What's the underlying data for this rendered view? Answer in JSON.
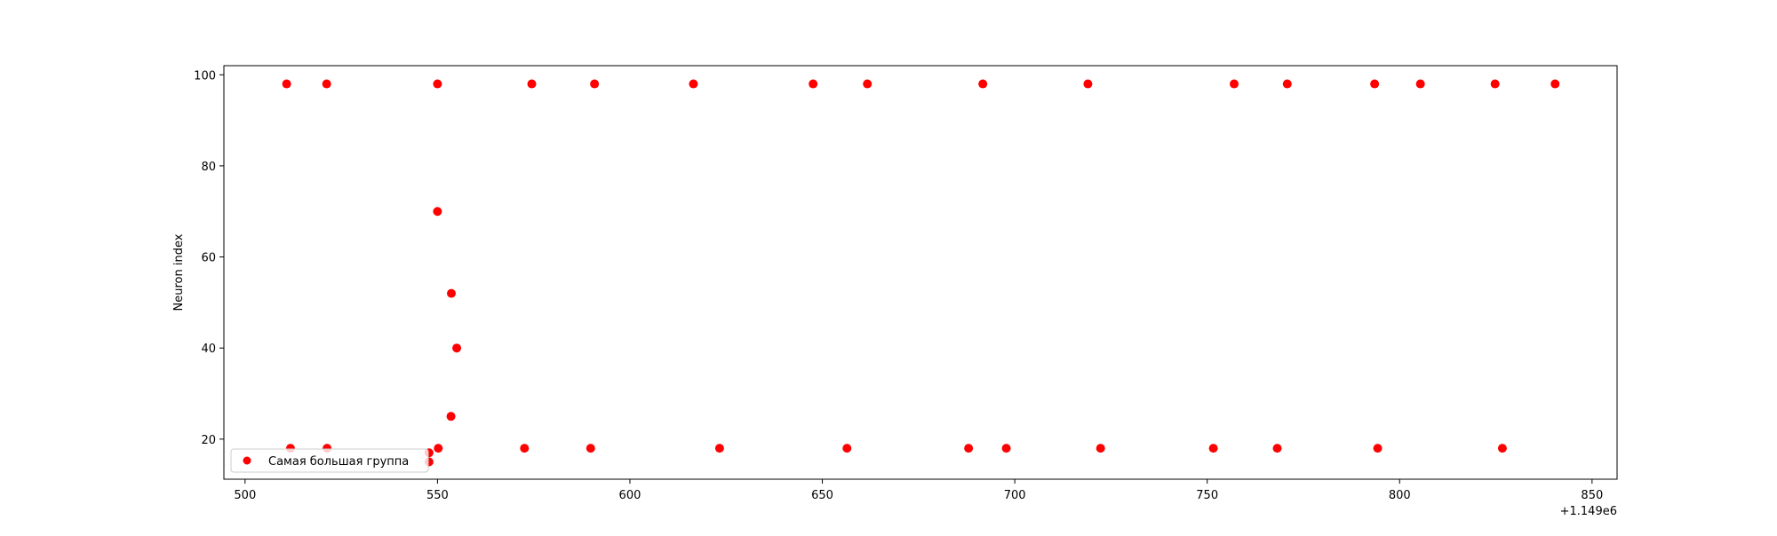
{
  "chart_data": {
    "type": "scatter",
    "title": "",
    "xlabel": "",
    "ylabel": "Neuron index",
    "x_offset_label": "+1.149e6",
    "xlim": [
      494.5,
      856.5
    ],
    "ylim": [
      11.2,
      102.0
    ],
    "xticks": [
      500,
      550,
      600,
      650,
      700,
      750,
      800,
      850
    ],
    "yticks": [
      20,
      40,
      60,
      80,
      100
    ],
    "grid": false,
    "legend_position": "lower-left",
    "series": [
      {
        "name": "Самая большая группа",
        "color": "#ff0000",
        "marker": "circle",
        "points": [
          {
            "x": 510.8,
            "y": 98
          },
          {
            "x": 521.2,
            "y": 98
          },
          {
            "x": 550.0,
            "y": 98
          },
          {
            "x": 574.5,
            "y": 98
          },
          {
            "x": 590.8,
            "y": 98
          },
          {
            "x": 616.5,
            "y": 98
          },
          {
            "x": 647.6,
            "y": 98
          },
          {
            "x": 661.7,
            "y": 98
          },
          {
            "x": 691.7,
            "y": 98
          },
          {
            "x": 719.0,
            "y": 98
          },
          {
            "x": 757.0,
            "y": 98
          },
          {
            "x": 770.8,
            "y": 98
          },
          {
            "x": 793.5,
            "y": 98
          },
          {
            "x": 805.4,
            "y": 98
          },
          {
            "x": 824.8,
            "y": 98
          },
          {
            "x": 840.4,
            "y": 98
          },
          {
            "x": 550.0,
            "y": 70
          },
          {
            "x": 553.6,
            "y": 52
          },
          {
            "x": 555.0,
            "y": 40
          },
          {
            "x": 553.5,
            "y": 25
          },
          {
            "x": 511.8,
            "y": 18
          },
          {
            "x": 521.3,
            "y": 18
          },
          {
            "x": 550.2,
            "y": 18
          },
          {
            "x": 572.6,
            "y": 18
          },
          {
            "x": 589.8,
            "y": 18
          },
          {
            "x": 623.3,
            "y": 18
          },
          {
            "x": 656.4,
            "y": 18
          },
          {
            "x": 688.0,
            "y": 18
          },
          {
            "x": 697.8,
            "y": 18
          },
          {
            "x": 722.3,
            "y": 18
          },
          {
            "x": 751.6,
            "y": 18
          },
          {
            "x": 768.2,
            "y": 18
          },
          {
            "x": 794.3,
            "y": 18
          },
          {
            "x": 826.7,
            "y": 18
          },
          {
            "x": 547.8,
            "y": 17
          },
          {
            "x": 547.8,
            "y": 15
          }
        ]
      }
    ]
  }
}
